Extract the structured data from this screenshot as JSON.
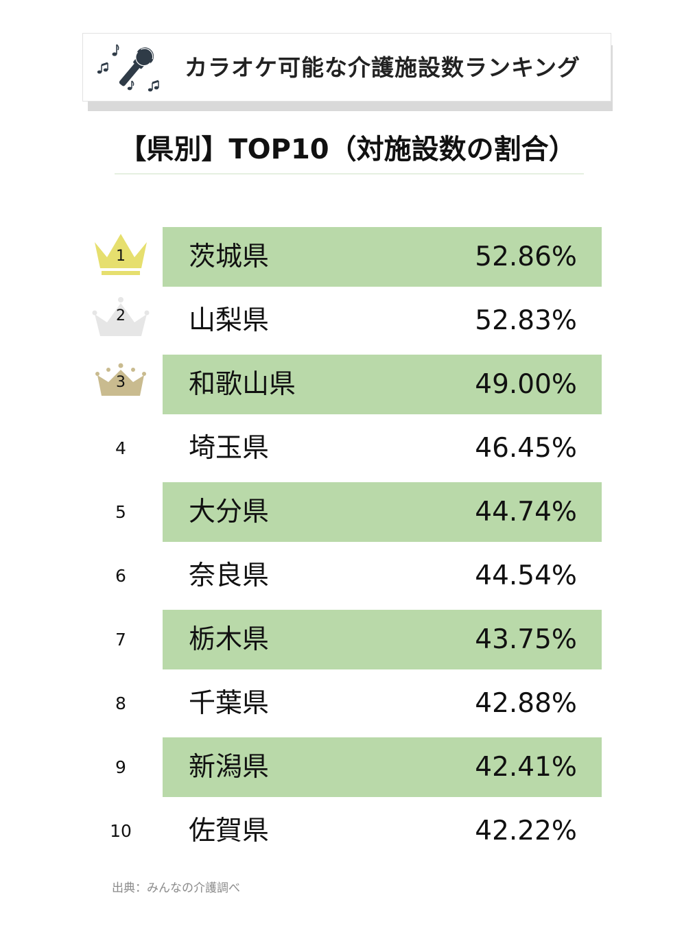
{
  "header": {
    "title": "カラオケ可能な介護施設数ランキング",
    "icon": "microphone-music-notes-icon"
  },
  "subtitle": "【県別】TOP10（対施設数の割合）",
  "colors": {
    "row_highlight": "#b9d9a9",
    "gold": "#e6df6e",
    "silver": "#e6e6e6",
    "bronze": "#c9bb8f"
  },
  "chart_data": {
    "type": "table",
    "title": "カラオケ可能な介護施設数ランキング",
    "subtitle": "【県別】TOP10（対施設数の割合）",
    "columns": [
      "rank",
      "prefecture",
      "ratio"
    ],
    "rows": [
      {
        "rank": "1",
        "prefecture": "茨城県",
        "ratio": "52.86%",
        "value": 52.86,
        "crown": "gold"
      },
      {
        "rank": "2",
        "prefecture": "山梨県",
        "ratio": "52.83%",
        "value": 52.83,
        "crown": "silver"
      },
      {
        "rank": "3",
        "prefecture": "和歌山県",
        "ratio": "49.00%",
        "value": 49.0,
        "crown": "bronze"
      },
      {
        "rank": "4",
        "prefecture": "埼玉県",
        "ratio": "46.45%",
        "value": 46.45
      },
      {
        "rank": "5",
        "prefecture": "大分県",
        "ratio": "44.74%",
        "value": 44.74
      },
      {
        "rank": "6",
        "prefecture": "奈良県",
        "ratio": "44.54%",
        "value": 44.54
      },
      {
        "rank": "7",
        "prefecture": "栃木県",
        "ratio": "43.75%",
        "value": 43.75
      },
      {
        "rank": "8",
        "prefecture": "千葉県",
        "ratio": "42.88%",
        "value": 42.88
      },
      {
        "rank": "9",
        "prefecture": "新潟県",
        "ratio": "42.41%",
        "value": 42.41
      },
      {
        "rank": "10",
        "prefecture": "佐賀県",
        "ratio": "42.22%",
        "value": 42.22
      }
    ]
  },
  "source": "出典：みんなの介護調べ"
}
